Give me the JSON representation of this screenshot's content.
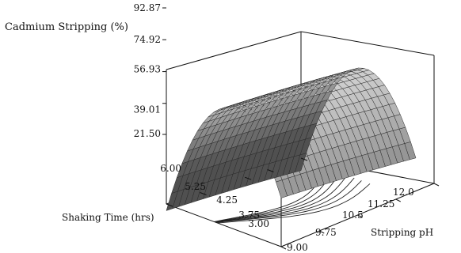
{
  "chart_data": {
    "type": "surface",
    "title": "Cadmium Stripping (%)",
    "xlabel": "Stripping pH",
    "ylabel": "Shaking Time (hrs)",
    "zlabel": "Cadmium Stripping (%)",
    "x_ticks": [
      "9.00",
      "9.75",
      "10.5",
      "11.25",
      "12.0"
    ],
    "y_ticks": [
      "3.00",
      "3.75",
      "4.25",
      "5.25",
      "6.00"
    ],
    "z_ticks": [
      "21.50",
      "39.01",
      "56.93",
      "74.92",
      "92.87"
    ],
    "xlim": [
      9,
      12
    ],
    "ylim": [
      3,
      6
    ],
    "zlim": [
      21.5,
      92.87
    ],
    "contours_on_floor": true,
    "surface_color": "#8a8a8a"
  }
}
